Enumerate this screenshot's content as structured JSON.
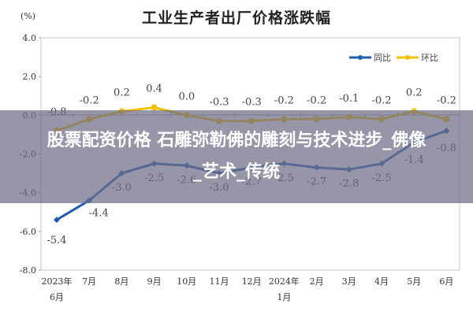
{
  "chart_data": {
    "type": "line",
    "title": "工业生产者出厂价格涨跌幅",
    "ylabel": "(%)",
    "xlabel": "",
    "ylim": [
      -8.0,
      4.0
    ],
    "yticks": [
      "4.0",
      "2.0",
      "0.0",
      "-2.0",
      "-4.0",
      "-6.0",
      "-8.0"
    ],
    "categories": [
      "2023年6月",
      "7月",
      "8月",
      "9月",
      "10月",
      "11月",
      "12月",
      "2024年1月",
      "2月",
      "3月",
      "4月",
      "5月",
      "6月"
    ],
    "category_lines": [
      [
        "2023年",
        "6月"
      ],
      [
        "7月"
      ],
      [
        "8月"
      ],
      [
        "9月"
      ],
      [
        "10月"
      ],
      [
        "11月"
      ],
      [
        "12月"
      ],
      [
        "2024年",
        "1月"
      ],
      [
        "2月"
      ],
      [
        "3月"
      ],
      [
        "4月"
      ],
      [
        "5月"
      ],
      [
        "6月"
      ]
    ],
    "series": [
      {
        "name": "同比",
        "color": "#1f5fad",
        "values": [
          -5.4,
          -4.4,
          -3.0,
          -2.5,
          -2.6,
          -3.0,
          -2.7,
          -2.5,
          -2.7,
          -2.8,
          -2.5,
          -1.4,
          -0.8
        ]
      },
      {
        "name": "环比",
        "color": "#f2c200",
        "values": [
          -0.8,
          -0.2,
          0.2,
          0.4,
          0.0,
          -0.3,
          -0.3,
          -0.2,
          -0.2,
          -0.1,
          -0.2,
          0.2,
          -0.2
        ]
      }
    ],
    "legend_position": "top-right",
    "grid": false
  },
  "overlay": {
    "line1": "股票配资价格 石雕弥勒佛的雕刻与技术进步_佛像",
    "line2": "_艺术_传统"
  }
}
